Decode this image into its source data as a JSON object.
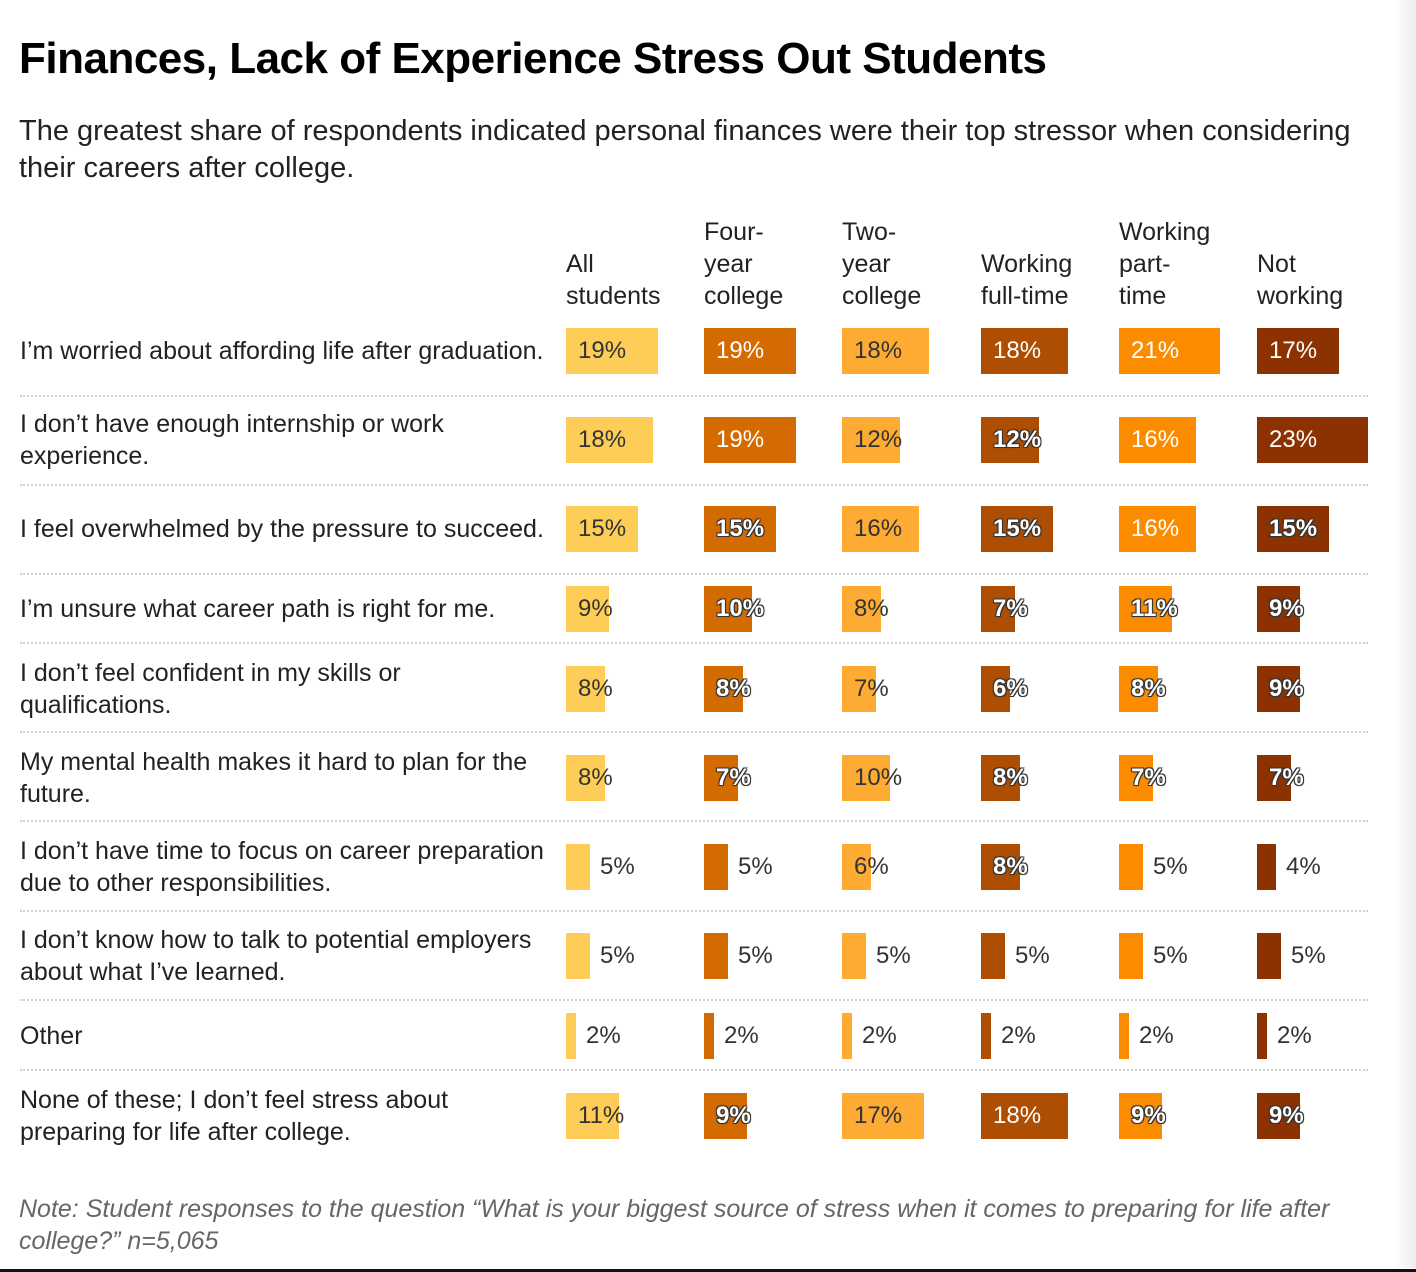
{
  "title": "Finances, Lack of Experience Stress Out Students",
  "subtitle": "The greatest share of respondents indicated personal finances were their top stressor when considering their careers after college.",
  "note": "Note: Student responses to the question “What is your biggest source of stress when it comes to preparing for life after college?” n=5,065",
  "chart_data": {
    "type": "table",
    "title": "Finances, Lack of Experience Stress Out Students",
    "unit": "%",
    "columns": [
      {
        "name": "All students",
        "label": "All\nstudents",
        "color": "#fecd57",
        "text_inside": "dark"
      },
      {
        "name": "Four-year college",
        "label": "Four-\nyear\ncollege",
        "color": "#d46b00",
        "text_inside": "light"
      },
      {
        "name": "Two-year college",
        "label": "Two-\nyear\ncollege",
        "color": "#fdab33",
        "text_inside": "dark"
      },
      {
        "name": "Working full-time",
        "label": "Working\nfull-time",
        "color": "#ad4e02",
        "text_inside": "light"
      },
      {
        "name": "Working part-time",
        "label": "Working\npart-\ntime",
        "color": "#fb8c00",
        "text_inside": "light"
      },
      {
        "name": "Not working",
        "label": "Not\nworking",
        "color": "#8c3200",
        "text_inside": "light"
      }
    ],
    "rows": [
      {
        "label": "I’m worried about affording life after graduation.",
        "values": [
          19,
          19,
          18,
          18,
          21,
          17
        ]
      },
      {
        "label": "I don’t have enough internship or work experience.",
        "values": [
          18,
          19,
          12,
          12,
          16,
          23
        ]
      },
      {
        "label": "I feel overwhelmed by the pressure to succeed.",
        "values": [
          15,
          15,
          16,
          15,
          16,
          15
        ]
      },
      {
        "label": "I’m unsure what career path is right for me.",
        "values": [
          9,
          10,
          8,
          7,
          11,
          9
        ]
      },
      {
        "label": "I don’t feel confident in my skills or qualifications.",
        "values": [
          8,
          8,
          7,
          6,
          8,
          9
        ]
      },
      {
        "label": "My mental health makes it hard to plan for the future.",
        "values": [
          8,
          7,
          10,
          8,
          7,
          7
        ]
      },
      {
        "label": "I don’t have time to focus on career preparation due to other responsibilities.",
        "values": [
          5,
          5,
          6,
          8,
          5,
          4
        ]
      },
      {
        "label": "I don’t know how to talk to potential employers about what I’ve learned.",
        "values": [
          5,
          5,
          5,
          5,
          5,
          5
        ]
      },
      {
        "label": "Other",
        "values": [
          2,
          2,
          2,
          2,
          2,
          2
        ]
      },
      {
        "label": "None of these; I don’t feel stress about preparing for life after college.",
        "values": [
          11,
          9,
          17,
          18,
          9,
          9
        ]
      }
    ],
    "value_max": 23,
    "grid": false,
    "legend": "none"
  }
}
